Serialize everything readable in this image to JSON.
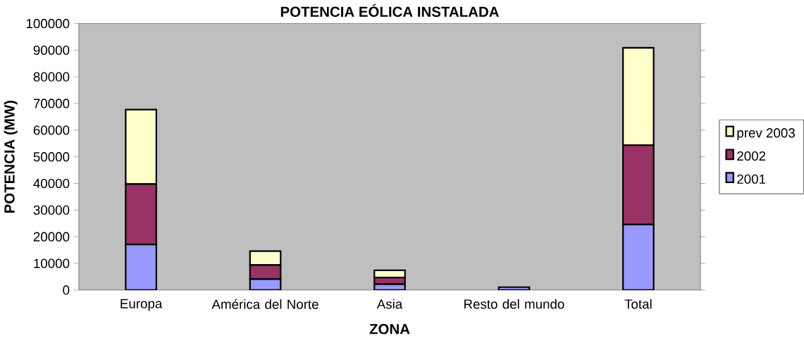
{
  "chart_data": {
    "type": "bar",
    "stacked": true,
    "title": "POTENCIA EÓLICA INSTALADA",
    "xlabel": "ZONA",
    "ylabel": "POTENCIA (MW)",
    "categories": [
      "Europa",
      "América del Norte",
      "Asia",
      "Resto del mundo",
      "Total"
    ],
    "series": [
      {
        "name": "2001",
        "color": "#9999ff",
        "values": [
          17100,
          4100,
          2200,
          1100,
          24600
        ]
      },
      {
        "name": "2002",
        "color": "#993366",
        "values": [
          22700,
          5300,
          2500,
          null,
          29800
        ]
      },
      {
        "name": "prev 2003",
        "color": "#ffffcc",
        "values": [
          27900,
          5200,
          2700,
          null,
          36500
        ]
      }
    ],
    "ylim": [
      0,
      100000
    ],
    "yticks": [
      0,
      10000,
      20000,
      30000,
      40000,
      50000,
      60000,
      70000,
      80000,
      90000,
      100000
    ],
    "grid": false,
    "legend": "right"
  }
}
